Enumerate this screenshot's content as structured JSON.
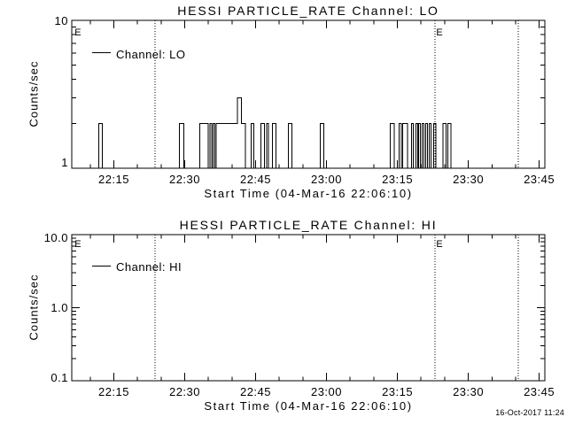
{
  "footer": {
    "timestamp": "16-Oct-2017 11:24"
  },
  "chart_data": [
    {
      "type": "line",
      "title": "HESSI PARTICLE_RATE Channel: LO",
      "xlabel": "Start Time (04-Mar-16 22:06:10)",
      "ylabel": "Counts/sec",
      "legend": "Channel: LO",
      "yscale": "log",
      "ylim": [
        1,
        10
      ],
      "y_tick_labels": [
        "1",
        "10"
      ],
      "x_tick_labels": [
        "22:15",
        "22:30",
        "22:45",
        "23:00",
        "23:15",
        "23:30",
        "23:45"
      ],
      "x_minor_step_min": 5,
      "x_range_min_after_2200": [
        6.1,
        106.2
      ],
      "grid": false,
      "line_color": "#000000",
      "baseline_counts_per_sec": 1,
      "event_lines_min_after_2200": [
        23.7,
        83.0,
        100.6
      ],
      "event_labels": [
        {
          "label": "E",
          "t_min": 6.9
        },
        {
          "label": "E",
          "t_min": 83.4
        }
      ],
      "segments_min_after_2200_and_rate": [
        [
          11.8,
          12.6,
          2
        ],
        [
          28.9,
          29.8,
          2
        ],
        [
          33.2,
          35.0,
          2
        ],
        [
          35.3,
          35.7,
          2
        ],
        [
          36.0,
          36.4,
          2
        ],
        [
          36.7,
          41.2,
          2
        ],
        [
          41.2,
          42.0,
          3
        ],
        [
          42.0,
          42.8,
          2
        ],
        [
          44.1,
          44.6,
          2
        ],
        [
          46.1,
          46.9,
          2
        ],
        [
          47.3,
          47.7,
          2
        ],
        [
          48.6,
          49.3,
          2
        ],
        [
          51.9,
          52.7,
          2
        ],
        [
          58.7,
          59.4,
          2
        ],
        [
          73.5,
          74.3,
          2
        ],
        [
          75.4,
          75.8,
          2
        ],
        [
          76.1,
          77.1,
          2
        ],
        [
          78.0,
          78.4,
          2
        ],
        [
          78.9,
          79.3,
          2
        ],
        [
          79.5,
          79.9,
          2
        ],
        [
          80.2,
          80.6,
          2
        ],
        [
          81.0,
          81.4,
          2
        ],
        [
          81.7,
          82.1,
          2
        ],
        [
          82.7,
          83.1,
          2
        ],
        [
          84.6,
          85.3,
          2
        ],
        [
          85.7,
          86.3,
          2
        ]
      ]
    },
    {
      "type": "line",
      "title": "HESSI PARTICLE_RATE Channel: HI",
      "xlabel": "Start Time (04-Mar-16 22:06:10)",
      "ylabel": "Counts/sec",
      "legend": "Channel: HI",
      "yscale": "log",
      "ylim": [
        0.1,
        10.0
      ],
      "y_tick_labels": [
        "0.1",
        "1.0",
        "10.0"
      ],
      "x_tick_labels": [
        "22:15",
        "22:30",
        "22:45",
        "23:00",
        "23:15",
        "23:30",
        "23:45"
      ],
      "x_minor_step_min": 5,
      "x_range_min_after_2200": [
        6.1,
        106.2
      ],
      "grid": false,
      "line_color": "#000000",
      "baseline_counts_per_sec": 0.1,
      "event_lines_min_after_2200": [
        23.7,
        83.0,
        100.6
      ],
      "event_labels": [
        {
          "label": "E",
          "t_min": 6.9
        },
        {
          "label": "E",
          "t_min": 83.4
        }
      ],
      "segments_min_after_2200_and_rate": []
    }
  ]
}
